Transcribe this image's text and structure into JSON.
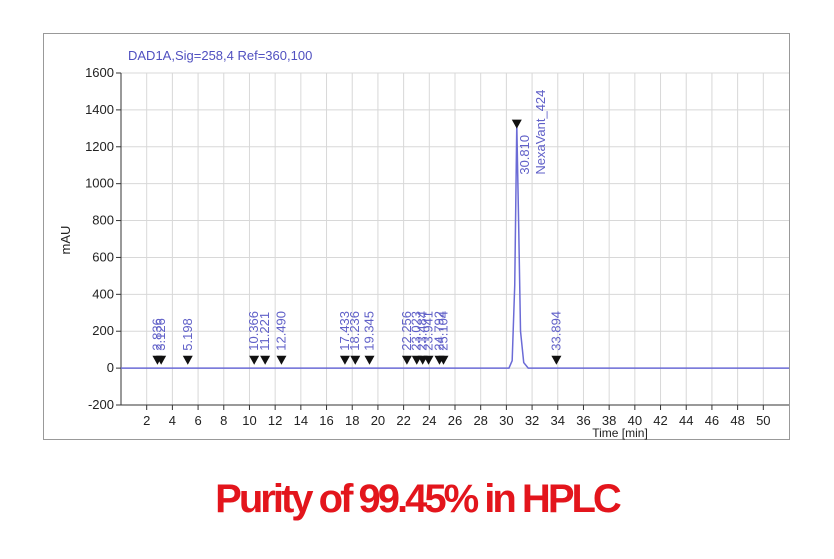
{
  "chart_data": {
    "type": "chromatogram",
    "title": "DAD1A,Sig=258,4  Ref=360,100",
    "y_label": "mAU",
    "x_label": "Time [min]",
    "caption": "Purity of 99.45% in HPLC",
    "xlim": [
      0,
      52
    ],
    "ylim": [
      -200,
      1600
    ],
    "xticks": [
      2,
      4,
      6,
      8,
      10,
      12,
      14,
      16,
      18,
      20,
      22,
      24,
      26,
      28,
      30,
      32,
      34,
      36,
      38,
      40,
      42,
      44,
      46,
      48,
      50
    ],
    "yticks": [
      -200,
      0,
      200,
      400,
      600,
      800,
      1000,
      1200,
      1400,
      1600
    ],
    "grid": true,
    "line_color": "#6b6bd6",
    "marker_color": "#111111",
    "label_color": "#6060c8",
    "trace": {
      "x": [
        0,
        30.2,
        30.45,
        30.65,
        30.81,
        30.95,
        31.1,
        31.35,
        31.7,
        52
      ],
      "values": [
        0,
        0,
        40,
        450,
        1320,
        800,
        200,
        30,
        0,
        0
      ]
    },
    "peaks": {
      "x": [
        2.836,
        3.126,
        5.198,
        10.366,
        11.221,
        12.49,
        17.433,
        18.236,
        19.345,
        22.256,
        23.023,
        23.484,
        23.941,
        24.792,
        25.104,
        30.81,
        33.894
      ],
      "x_labels": [
        "2.836",
        "3.126",
        "5.198",
        "10.366",
        "11.221",
        "12.490",
        "17.433",
        "18.236",
        "19.345",
        "22.256",
        "23.023",
        "23.484",
        "23.941",
        "24.792",
        "25.104",
        "30.810",
        "33.894"
      ],
      "values": [
        40,
        40,
        40,
        40,
        40,
        40,
        40,
        40,
        40,
        40,
        40,
        40,
        40,
        40,
        40,
        1320,
        40
      ]
    },
    "main_peak_name": "NexaVant_424"
  }
}
